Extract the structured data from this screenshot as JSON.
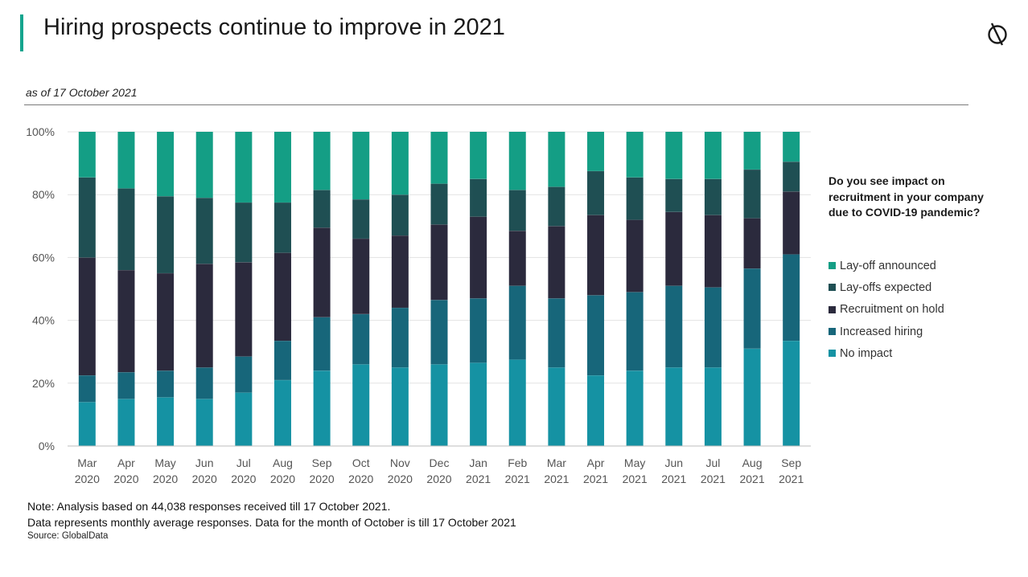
{
  "header": {
    "title": "Hiring prospects continue to improve in 2021",
    "subtitle": "as of 17 October 2021"
  },
  "legend": {
    "title": "Do you see impact on recruitment in your company due to COVID-19 pandemic?"
  },
  "footer": {
    "note1": "Note: Analysis based on 44,038 responses received till 17 October 2021.",
    "note2": "Data represents monthly average responses. Data for the month of October is till 17 October 2021",
    "source": "Source: GlobalData"
  },
  "colors": {
    "accent": "#15a58e",
    "gridline": "#e3e3e3",
    "axis": "#bdbdbd"
  },
  "chart_data": {
    "type": "bar",
    "stacked": true,
    "categories": [
      "Mar 2020",
      "Apr 2020",
      "May 2020",
      "Jun 2020",
      "Jul 2020",
      "Aug 2020",
      "Sep 2020",
      "Oct 2020",
      "Nov 2020",
      "Dec 2020",
      "Jan 2021",
      "Feb 2021",
      "Mar 2021",
      "Apr 2021",
      "May 2021",
      "Jun 2021",
      "Jul 2021",
      "Aug 2021",
      "Sep 2021"
    ],
    "category_lines": [
      [
        "Mar",
        "2020"
      ],
      [
        "Apr",
        "2020"
      ],
      [
        "May",
        "2020"
      ],
      [
        "Jun",
        "2020"
      ],
      [
        "Jul",
        "2020"
      ],
      [
        "Aug",
        "2020"
      ],
      [
        "Sep",
        "2020"
      ],
      [
        "Oct",
        "2020"
      ],
      [
        "Nov",
        "2020"
      ],
      [
        "Dec",
        "2020"
      ],
      [
        "Jan",
        "2021"
      ],
      [
        "Feb",
        "2021"
      ],
      [
        "Mar",
        "2021"
      ],
      [
        "Apr",
        "2021"
      ],
      [
        "May",
        "2021"
      ],
      [
        "Jun",
        "2021"
      ],
      [
        "Jul",
        "2021"
      ],
      [
        "Aug",
        "2021"
      ],
      [
        "Sep",
        "2021"
      ]
    ],
    "series": [
      {
        "name": "No impact",
        "color": "#1592a3",
        "values": [
          14,
          15,
          15.5,
          15,
          17,
          21,
          24,
          26,
          25,
          26,
          26.5,
          27.5,
          25,
          22.5,
          24,
          25,
          25,
          31,
          33.5
        ]
      },
      {
        "name": "Increased hiring",
        "color": "#17667a",
        "values": [
          8.5,
          8.5,
          8.5,
          10,
          11.5,
          12.5,
          17,
          16,
          19,
          20.5,
          20.5,
          23.5,
          22,
          25.5,
          25,
          26,
          25.5,
          25.5,
          27.5
        ]
      },
      {
        "name": "Recruitment on hold",
        "color": "#2b2a3d",
        "values": [
          37.5,
          32.5,
          31,
          33,
          30,
          28,
          28.5,
          24,
          23,
          24,
          26,
          17.5,
          23,
          25.5,
          23,
          23.5,
          23,
          16,
          20
        ]
      },
      {
        "name": "Lay-offs expected",
        "color": "#1f4f53",
        "values": [
          25.5,
          26,
          24.5,
          21,
          19,
          16,
          12,
          12.5,
          13,
          13,
          12,
          13,
          12.5,
          14,
          13.5,
          10.5,
          11.5,
          15.5,
          9.5
        ]
      },
      {
        "name": "Lay-off announced",
        "color": "#149e85",
        "values": [
          14.5,
          18,
          20.5,
          21,
          22.5,
          22.5,
          18.5,
          21.5,
          20,
          16.5,
          15,
          18.5,
          17.5,
          12.5,
          14.5,
          15,
          15,
          12,
          9.5
        ]
      }
    ],
    "legend_order": [
      "Lay-off announced",
      "Lay-offs expected",
      "Recruitment on hold",
      "Increased hiring",
      "No impact"
    ],
    "y_ticks": [
      "0%",
      "20%",
      "40%",
      "60%",
      "80%",
      "100%"
    ],
    "ylim": [
      0,
      100
    ],
    "grid": true,
    "legend_position": "right"
  }
}
